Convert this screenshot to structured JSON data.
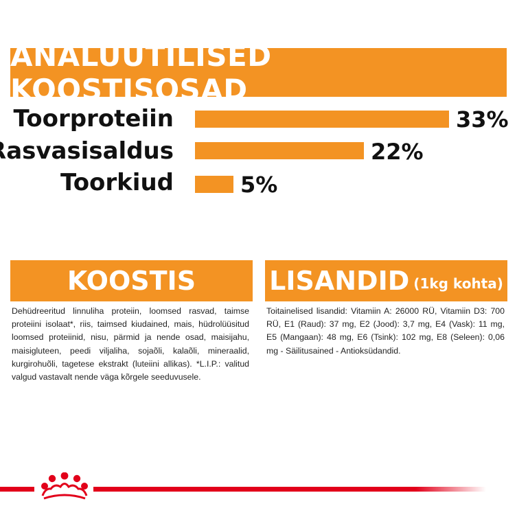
{
  "header": {
    "title": "ANALÜÜTILISED KOOSTISOSAD"
  },
  "nutrients": [
    {
      "label": "Toorproteiin",
      "value": 33,
      "value_label": "33%"
    },
    {
      "label": "Rasvasisaldus",
      "value": 22,
      "value_label": "22%"
    },
    {
      "label": "Toorkiud",
      "value": 5,
      "value_label": "5%"
    }
  ],
  "koostis": {
    "title": "KOOSTIS",
    "text": "Dehüdreeritud linnuliha proteiin, loomsed rasvad, taimse proteiini isolaat*, riis, taimsed kiudained, mais, hüdrolüüsitud loomsed proteiinid, nisu, pärmid ja nende osad, maisijahu, maisigluteen, peedi viljaliha, sojaõli, kalaõli, mineraalid, kurgirohuõli, tagetese ekstrakt (luteiini allikas). *L.I.P.: valitud valgud vastavalt nende väga kõrgele seeduvusele."
  },
  "lisandid": {
    "title": "LISANDID",
    "subtitle": "(1kg kohta)",
    "text": "Toitainelised lisandid: Vitamiin A: 26000 RÜ, Vitamiin D3: 700 RÜ, E1 (Raud): 37 mg, E2 (Jood): 3,7 mg, E4 (Vask): 11 mg, E5 (Mangaan): 48 mg, E6 (Tsink): 102 mg, E8 (Seleen): 0,06 mg - Säilitusained - Antioksüdandid."
  },
  "colors": {
    "accent": "#f39323",
    "brand_red": "#e2001a"
  },
  "footer": {
    "logo_icon": "royal-canin-crown-icon"
  }
}
